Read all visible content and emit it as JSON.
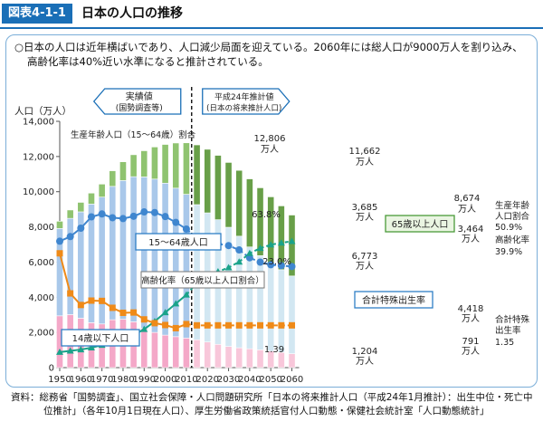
{
  "header": {
    "figure_no": "図表4-1-1",
    "title": "日本の人口の推移"
  },
  "summary": {
    "line1": "○日本の人口は近年横ばいであり、人口減少局面を迎えている。2060年には総人口が9000万人を割り込み、",
    "line2": "高齢化率は40%近い水準になると推計されている。"
  },
  "source": {
    "line1": "資料：総務省「国勢調査」、国立社会保障・人口問題研究所「日本の将来推計人口（平成24年1月推計）：出生中位・死亡中",
    "line2": "位推計」（各年10月1日現在人口）、厚生労働省政策統括官付人口動態・保健社会統計室「人口動態統計」"
  },
  "chart_data": {
    "type": "bar",
    "x": [
      1950,
      1955,
      1960,
      1965,
      1970,
      1975,
      1980,
      1985,
      1990,
      1995,
      2000,
      2005,
      2010,
      2015,
      2020,
      2025,
      2030,
      2035,
      2040,
      2045,
      2050,
      2055,
      2060
    ],
    "split_after_year": 2010,
    "ylabel": "人口（万人）",
    "ylim": [
      0,
      14000
    ],
    "yticks": [
      0,
      2000,
      4000,
      6000,
      8000,
      10000,
      12000,
      14000
    ],
    "yticklabels": [
      "0",
      "2,000",
      "4,000",
      "6,000",
      "8,000",
      "10,000",
      "12,000",
      "14,000"
    ],
    "xticks": [
      1950,
      1960,
      1970,
      1980,
      1990,
      2000,
      2010,
      2020,
      2030,
      2040,
      2050,
      2060
    ],
    "y2lim": [
      0,
      140
    ],
    "colors": {
      "under15": "#f4a8c8",
      "under15_proj": "#f8c7da",
      "working": "#a9c8ea",
      "working_proj": "#d2e7f2",
      "elderly": "#8fc370",
      "elderly_proj": "#689f48",
      "ratio_line": "#3f86cf",
      "aging_line": "#1aa38a",
      "tfr_line": "#ef8a18",
      "box_blue": "#2f7fc6",
      "box_green": "#4a9b3a"
    },
    "series": [
      {
        "name": "14歳以下人口",
        "role": "under15",
        "values": [
          2943,
          3012,
          2807,
          2553,
          2482,
          2722,
          2751,
          2603,
          2249,
          2001,
          1847,
          1759,
          1680,
          1583,
          1457,
          1324,
          1204,
          1129,
          1073,
          1012,
          939,
          861,
          791
        ]
      },
      {
        "name": "15～64歳人口",
        "role": "working",
        "values": [
          4966,
          5473,
          6047,
          6744,
          7212,
          7581,
          7883,
          8251,
          8590,
          8716,
          8638,
          8442,
          8173,
          7682,
          7341,
          7085,
          6773,
          6343,
          5787,
          5353,
          5001,
          4706,
          4418
        ]
      },
      {
        "name": "65歳以上人口",
        "role": "elderly",
        "values": [
          411,
          475,
          540,
          624,
          739,
          887,
          1065,
          1247,
          1489,
          1826,
          2201,
          2567,
          2925,
          3395,
          3612,
          3657,
          3685,
          3741,
          3868,
          3856,
          3768,
          3626,
          3464
        ]
      },
      {
        "name": "生産年齢人口（15～64歳）割合",
        "role": "working_ratio",
        "values": [
          59.6,
          61.2,
          64.1,
          68.0,
          69.0,
          67.7,
          67.4,
          68.2,
          69.7,
          69.5,
          68.1,
          66.1,
          63.8,
          60.7,
          59.2,
          58.7,
          58.1,
          56.6,
          53.9,
          52.4,
          51.5,
          51.2,
          50.9
        ]
      },
      {
        "name": "高齢化率（65歳以上人口割合）",
        "role": "aging_rate",
        "values": [
          4.9,
          5.3,
          5.7,
          6.3,
          7.1,
          7.9,
          9.1,
          10.3,
          12.1,
          14.6,
          17.4,
          20.2,
          23.0,
          26.8,
          29.1,
          30.3,
          31.6,
          33.4,
          36.1,
          37.7,
          38.8,
          39.4,
          39.9
        ]
      },
      {
        "name": "合計特殊出生率",
        "role": "tfr",
        "values": [
          3.65,
          2.37,
          2.0,
          2.14,
          2.13,
          1.91,
          1.75,
          1.76,
          1.54,
          1.42,
          1.36,
          1.26,
          1.39,
          1.35,
          1.35,
          1.35,
          1.35,
          1.35,
          1.35,
          1.35,
          1.35,
          1.35,
          1.35
        ]
      }
    ],
    "annotations": {
      "actual_label": "実績値",
      "actual_sub": "(国勢調査等)",
      "proj_label": "平成24年推計値",
      "proj_sub": "(日本の将来推計人口)",
      "working_ratio_label": "生産年齢人口（15～64歳）割合",
      "working_box": "15～64歳人口",
      "aging_label": "高齢化率（65歳以上人口割合）",
      "elderly_box": "65歳以上人口",
      "under15_box": "14歳以下人口",
      "tfr_box": "合計特殊出生率",
      "total_2010_value": "12,806",
      "total_2030_value": "11,662",
      "total_2060_value": "8,674",
      "unit": "万人",
      "elderly_2030": "3,685",
      "elderly_2060": "3,464",
      "working_2030": "6,773",
      "working_2060": "4,418",
      "under15_2030": "1,204",
      "under15_2060": "791",
      "ratio_2010": "63.8%",
      "aging_2010": "23.0%",
      "tfr_2010": "1.39",
      "right_working_label_1": "生産年齢",
      "right_working_label_2": "人口割合",
      "right_working_value": "50.9%",
      "right_aging_label": "高齢化率",
      "right_aging_value": "39.9%",
      "right_tfr_label_1": "合計特殊",
      "right_tfr_label_2": "出生率",
      "right_tfr_value": "1.35"
    }
  }
}
